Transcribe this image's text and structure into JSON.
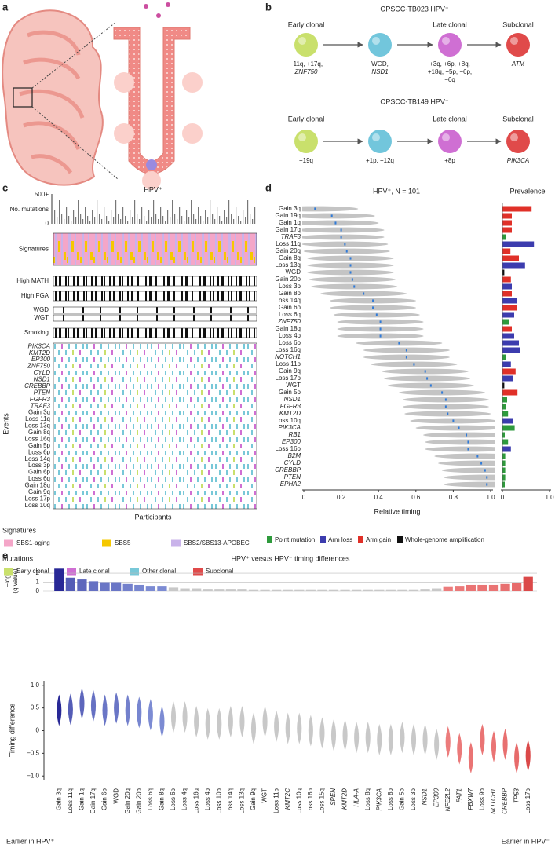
{
  "panel_labels": [
    "a",
    "b",
    "c",
    "d",
    "e"
  ],
  "b": {
    "trees": [
      {
        "title": "OPSCC-TB023 HPV⁺",
        "nodes": [
          {
            "stage": "Early clonal",
            "color": "#c9e06c",
            "events": [
              "−11q, +17q,",
              "ZNF750"
            ]
          },
          {
            "color": "#72c6dc",
            "events": [
              "WGD,",
              "NSD1"
            ]
          },
          {
            "stage": "Late clonal",
            "color": "#cf6fd3",
            "events": [
              "+3q, +6p, +8q,",
              "+18q, +5p, −6p,",
              "−6q"
            ]
          },
          {
            "stage": "Subclonal",
            "color": "#e04a4a",
            "events": [
              "ATM"
            ]
          }
        ]
      },
      {
        "title": "OPSCC-TB149 HPV⁺",
        "nodes": [
          {
            "stage": "Early clonal",
            "color": "#c9e06c",
            "events": [
              "+19q"
            ]
          },
          {
            "color": "#72c6dc",
            "events": [
              "+1p, +12q"
            ]
          },
          {
            "stage": "Late clonal",
            "color": "#cf6fd3",
            "events": [
              "+8p"
            ]
          },
          {
            "stage": "Subclonal",
            "color": "#e04a4a",
            "events": [
              "PIK3CA"
            ]
          }
        ]
      }
    ]
  },
  "c": {
    "title": "HPV⁺",
    "hist_ticks": [
      "500+",
      "0"
    ],
    "hist_label": "No. mutations",
    "tracks": [
      "Signatures",
      "High MATH",
      "High FGA",
      "WGD",
      "WGT",
      "Smoking"
    ],
    "events": [
      "PIK3CA",
      "KMT2D",
      "EP300",
      "ZNF750",
      "CYLD",
      "NSD1",
      "CREBBP",
      "PTEN",
      "FGFR3",
      "TRAF3",
      "Gain 3q",
      "Loss 11q",
      "Loss 13q",
      "Gain 8q",
      "Loss 16q",
      "Gain 5p",
      "Loss 6p",
      "Loss 14q",
      "Loss 3p",
      "Gain 6p",
      "Loss 6q",
      "Gain 18q",
      "Gain 9q",
      "Loss 17p",
      "Loss 10q"
    ],
    "events_label": "Events",
    "x_label": "Participants",
    "legends": [
      {
        "title": "Signatures",
        "items": [
          {
            "name": "SBS1-aging",
            "color": "#f4a6c8"
          },
          {
            "name": "SBS5",
            "color": "#f5c800"
          },
          {
            "name": "SBS2/SBS13-APOBEC",
            "color": "#c9b3ea"
          }
        ]
      },
      {
        "title": "Mutations",
        "items": [
          {
            "name": "Early clonal",
            "color": "#c9e06c"
          },
          {
            "name": "Late clonal",
            "color": "#cf6fd3"
          },
          {
            "name": "Other clonal",
            "color": "#78c8d8"
          },
          {
            "name": "Subclonal",
            "color": "#e04a4a"
          }
        ]
      }
    ]
  },
  "d": {
    "title": "HPV⁺, N = 101",
    "prevalence_title": "Prevalence",
    "x_label": "Relative timing",
    "xlim": [
      0,
      1
    ],
    "xticks": [
      0,
      0.2,
      0.4,
      0.6,
      0.8,
      {
        "value": 1,
        "label": "1.0"
      }
    ],
    "prevalence_xlim": [
      0,
      1
    ],
    "prevalence_xticks": [
      0,
      {
        "value": 1,
        "label": "1.0"
      }
    ],
    "legend": [
      {
        "name": "Point mutation",
        "color": "#2e9a3c"
      },
      {
        "name": "Arm loss",
        "color": "#3c3cae"
      },
      {
        "name": "Arm gain",
        "color": "#e03028"
      },
      {
        "name": "Whole-genome amplification",
        "color": "#111111"
      }
    ],
    "rows": [
      {
        "label": "Gain 3q",
        "timing": 0.06,
        "prevalence": 0.62,
        "color": "#e03028"
      },
      {
        "label": "Gain 19q",
        "timing": 0.15,
        "prevalence": 0.2,
        "color": "#e03028"
      },
      {
        "label": "Gain 1q",
        "timing": 0.17,
        "prevalence": 0.2,
        "color": "#e03028"
      },
      {
        "label": "Gain 17q",
        "timing": 0.2,
        "prevalence": 0.2,
        "color": "#e03028"
      },
      {
        "label": "TRAF3",
        "timing": 0.2,
        "prevalence": 0.08,
        "color": "#2e9a3c"
      },
      {
        "label": "Loss 11q",
        "timing": 0.22,
        "prevalence": 0.67,
        "color": "#3c3cae"
      },
      {
        "label": "Gain 20q",
        "timing": 0.23,
        "prevalence": 0.17,
        "color": "#e03028"
      },
      {
        "label": "Gain 8q",
        "timing": 0.25,
        "prevalence": 0.35,
        "color": "#e03028"
      },
      {
        "label": "Loss 13q",
        "timing": 0.25,
        "prevalence": 0.48,
        "color": "#3c3cae"
      },
      {
        "label": "WGD",
        "timing": 0.25,
        "prevalence": 0.04,
        "color": "#111111"
      },
      {
        "label": "Gain 20p",
        "timing": 0.26,
        "prevalence": 0.18,
        "color": "#e03028"
      },
      {
        "label": "Loss 3p",
        "timing": 0.27,
        "prevalence": 0.2,
        "color": "#3c3cae"
      },
      {
        "label": "Gain 8p",
        "timing": 0.32,
        "prevalence": 0.2,
        "color": "#e03028"
      },
      {
        "label": "Loss 14q",
        "timing": 0.37,
        "prevalence": 0.3,
        "color": "#3c3cae"
      },
      {
        "label": "Gain 6p",
        "timing": 0.37,
        "prevalence": 0.3,
        "color": "#e03028"
      },
      {
        "label": "Loss 6q",
        "timing": 0.39,
        "prevalence": 0.25,
        "color": "#3c3cae"
      },
      {
        "label": "ZNF750",
        "timing": 0.41,
        "prevalence": 0.14,
        "color": "#2e9a3c"
      },
      {
        "label": "Gain 18q",
        "timing": 0.41,
        "prevalence": 0.2,
        "color": "#e03028"
      },
      {
        "label": "Loss 4p",
        "timing": 0.41,
        "prevalence": 0.25,
        "color": "#3c3cae"
      },
      {
        "label": "Loss 6p",
        "timing": 0.51,
        "prevalence": 0.35,
        "color": "#3c3cae"
      },
      {
        "label": "Loss 16q",
        "timing": 0.55,
        "prevalence": 0.38,
        "color": "#3c3cae"
      },
      {
        "label": "NOTCH1",
        "timing": 0.55,
        "prevalence": 0.08,
        "color": "#2e9a3c"
      },
      {
        "label": "Loss 11p",
        "timing": 0.59,
        "prevalence": 0.18,
        "color": "#3c3cae"
      },
      {
        "label": "Gain 9q",
        "timing": 0.65,
        "prevalence": 0.28,
        "color": "#e03028"
      },
      {
        "label": "Loss 17p",
        "timing": 0.66,
        "prevalence": 0.22,
        "color": "#3c3cae"
      },
      {
        "label": "WGT",
        "timing": 0.68,
        "prevalence": 0.04,
        "color": "#111111"
      },
      {
        "label": "Gain 5p",
        "timing": 0.74,
        "prevalence": 0.32,
        "color": "#e03028"
      },
      {
        "label": "NSD1",
        "timing": 0.76,
        "prevalence": 0.1,
        "color": "#2e9a3c"
      },
      {
        "label": "FGFR3",
        "timing": 0.76,
        "prevalence": 0.08,
        "color": "#2e9a3c"
      },
      {
        "label": "KMT2D",
        "timing": 0.77,
        "prevalence": 0.12,
        "color": "#2e9a3c"
      },
      {
        "label": "Loss 10q",
        "timing": 0.8,
        "prevalence": 0.22,
        "color": "#3c3cae"
      },
      {
        "label": "PIK3CA",
        "timing": 0.83,
        "prevalence": 0.26,
        "color": "#2e9a3c"
      },
      {
        "label": "RB1",
        "timing": 0.87,
        "prevalence": 0.05,
        "color": "#2e9a3c"
      },
      {
        "label": "EP300",
        "timing": 0.88,
        "prevalence": 0.12,
        "color": "#2e9a3c"
      },
      {
        "label": "Loss 16p",
        "timing": 0.88,
        "prevalence": 0.18,
        "color": "#3c3cae"
      },
      {
        "label": "B2M",
        "timing": 0.93,
        "prevalence": 0.06,
        "color": "#2e9a3c"
      },
      {
        "label": "CYLD",
        "timing": 0.95,
        "prevalence": 0.06,
        "color": "#2e9a3c"
      },
      {
        "label": "CREBBP",
        "timing": 0.97,
        "prevalence": 0.06,
        "color": "#2e9a3c"
      },
      {
        "label": "PTEN",
        "timing": 0.98,
        "prevalence": 0.06,
        "color": "#2e9a3c"
      },
      {
        "label": "EPHA2",
        "timing": 0.98,
        "prevalence": 0.05,
        "color": "#2e9a3c"
      }
    ]
  },
  "e": {
    "title": "HPV⁺ versus HPV⁻ timing differences",
    "q_label": [
      "−log",
      "(q value)"
    ],
    "q_ylim": [
      0,
      2.7
    ],
    "q_yticks": [
      0,
      1,
      2
    ],
    "y_label": "Timing difference",
    "ylim": [
      -1.1,
      1.1
    ],
    "yticks": [
      {
        "value": 1,
        "label": "1.0"
      },
      0.5,
      0,
      {
        "value": -0.5,
        "label": "−0.5"
      },
      {
        "value": -1,
        "label": "−1.0"
      }
    ],
    "footer_left": "Earlier in HPV⁺",
    "footer_right": "Earlier in HPV⁻",
    "categories": [
      "Gain 3q",
      "Loss 11q",
      "Gain 1q",
      "Gain 17q",
      "Gain 6p",
      "WGD",
      "Gain 20q",
      "Gain 20p",
      "Loss 6q",
      "Gain 8q",
      "Loss 6p",
      "Loss 4q",
      "Loss 16q",
      "Loss 4p",
      "Loss 10p",
      "Loss 14q",
      "Loss 13q",
      "Gain 9q",
      "WGT",
      "Loss 11p",
      "KMT2C",
      "Loss 10q",
      "Loss 16p",
      "Loss 15q",
      "SPEN",
      "KMT2D",
      "HLA-A",
      "Loss 8q",
      "PIK3CA",
      "Loss 8p",
      "Gain 5p",
      "Loss 3p",
      "NSD1",
      "EP300",
      "NFE2L2",
      "FAT1",
      "FBXW7",
      "Loss 9p",
      "NOTCH1",
      "CREBBP",
      "TP53",
      "Loss 17p"
    ],
    "q_values": [
      2.5,
      1.5,
      1.3,
      1.1,
      1.0,
      1.0,
      0.8,
      0.7,
      0.6,
      0.6,
      0.4,
      0.3,
      0.3,
      0.25,
      0.25,
      0.25,
      0.25,
      0.2,
      0.2,
      0.2,
      0.2,
      0.2,
      0.2,
      0.2,
      0.2,
      0.2,
      0.2,
      0.2,
      0.2,
      0.2,
      0.2,
      0.2,
      0.25,
      0.3,
      0.55,
      0.6,
      0.7,
      0.7,
      0.7,
      0.8,
      0.9,
      1.6
    ],
    "timing_differences": [
      0.45,
      0.47,
      0.6,
      0.55,
      0.45,
      0.5,
      0.45,
      0.4,
      0.35,
      0.2,
      0.3,
      0.3,
      0.2,
      0.15,
      0.15,
      0.2,
      0.2,
      0.05,
      0.2,
      0.1,
      0.05,
      0.05,
      0,
      -0.05,
      -0.1,
      -0.1,
      -0.15,
      -0.15,
      -0.2,
      -0.2,
      -0.15,
      -0.2,
      -0.2,
      -0.3,
      -0.25,
      -0.4,
      -0.6,
      -0.2,
      -0.35,
      -0.3,
      -0.6,
      -0.55
    ]
  }
}
